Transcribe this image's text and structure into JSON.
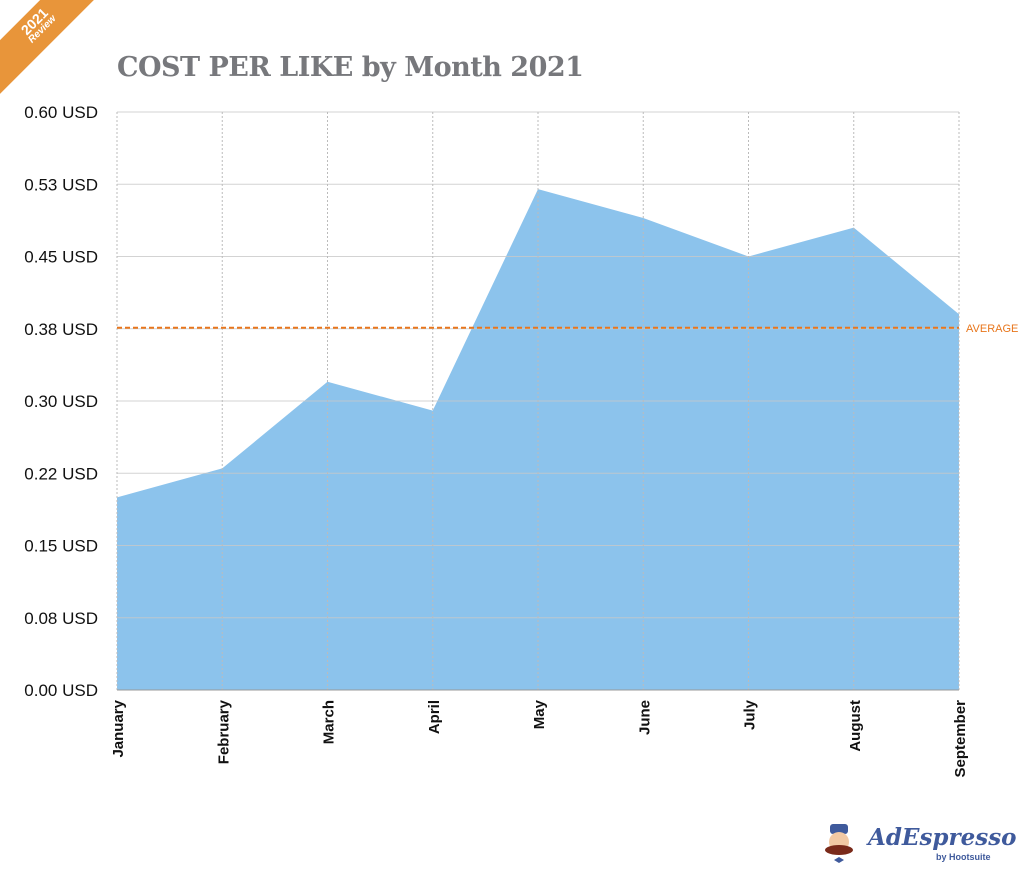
{
  "badge": {
    "year": "2021",
    "label": "Review"
  },
  "logo": {
    "name": "AdEspresso",
    "byline": "by Hootsuite"
  },
  "chart_data": {
    "type": "area",
    "title": "COST PER LIKE by Month 2021",
    "xlabel": "",
    "ylabel": "",
    "categories": [
      "January",
      "February",
      "March",
      "April",
      "May",
      "June",
      "July",
      "August",
      "September"
    ],
    "values": [
      0.2,
      0.23,
      0.32,
      0.29,
      0.52,
      0.49,
      0.45,
      0.48,
      0.39
    ],
    "ylim": [
      0,
      0.6
    ],
    "yticks": [
      0,
      0.075,
      0.15,
      0.225,
      0.3,
      0.375,
      0.45,
      0.525,
      0.6
    ],
    "ytick_labels": [
      "0.00 USD",
      "0.08 USD",
      "0.15 USD",
      "0.22 USD",
      "0.30 USD",
      "0.38 USD",
      "0.45 USD",
      "0.53 USD",
      "0.60 USD"
    ],
    "grid": true,
    "fill_color": "#8cc3ec",
    "average": {
      "value": 0.376,
      "label": "AVERAGE",
      "color": "#e8761c"
    }
  }
}
